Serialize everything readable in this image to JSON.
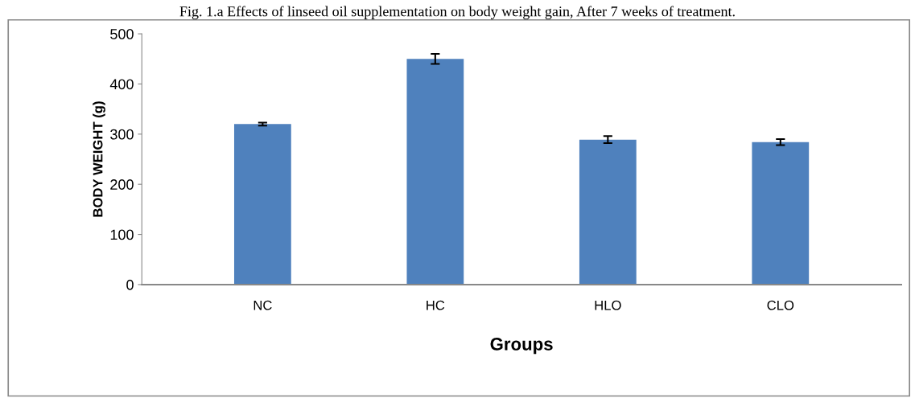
{
  "chart_data": {
    "type": "bar",
    "title": "Fig. 1.a Effects of linseed oil supplementation on body weight gain, After 7 weeks of treatment.",
    "xlabel": "Groups",
    "ylabel": "BODY WEIGHT (g)",
    "categories": [
      "NC",
      "HC",
      "HLO",
      "CLO"
    ],
    "values": [
      320,
      450,
      289,
      284
    ],
    "errors": [
      3,
      10,
      7,
      6
    ],
    "color": "#4f81bd",
    "ylim": [
      0,
      500
    ],
    "yticks": [
      0,
      100,
      200,
      300,
      400,
      500
    ],
    "grid": false,
    "legend": false
  }
}
